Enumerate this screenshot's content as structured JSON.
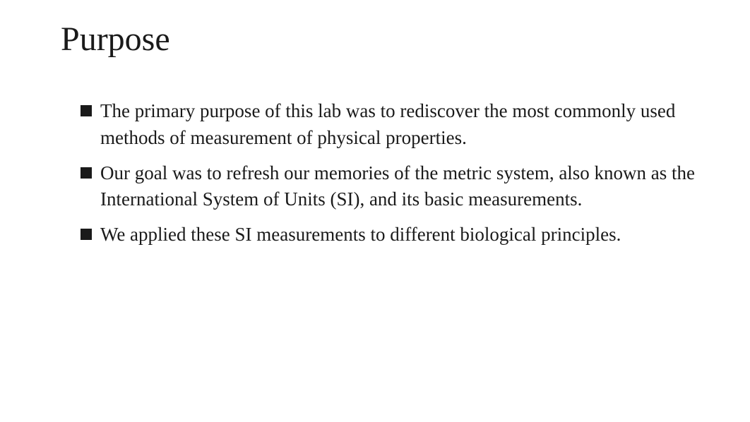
{
  "slide": {
    "title": "Purpose",
    "title_fontsize": 48,
    "title_color": "#1a1a1a",
    "background_color": "#ffffff",
    "body_fontsize": 27,
    "body_color": "#1a1a1a",
    "bullet_color": "#1a1a1a",
    "bullet_size": 16,
    "bullets": [
      "The primary purpose of this lab was to rediscover the most commonly used methods of measurement of physical properties.",
      "Our goal was to refresh our memories of the metric system, also known as the International System of Units (SI), and its basic measurements.",
      "We applied these SI measurements to different biological principles."
    ]
  }
}
